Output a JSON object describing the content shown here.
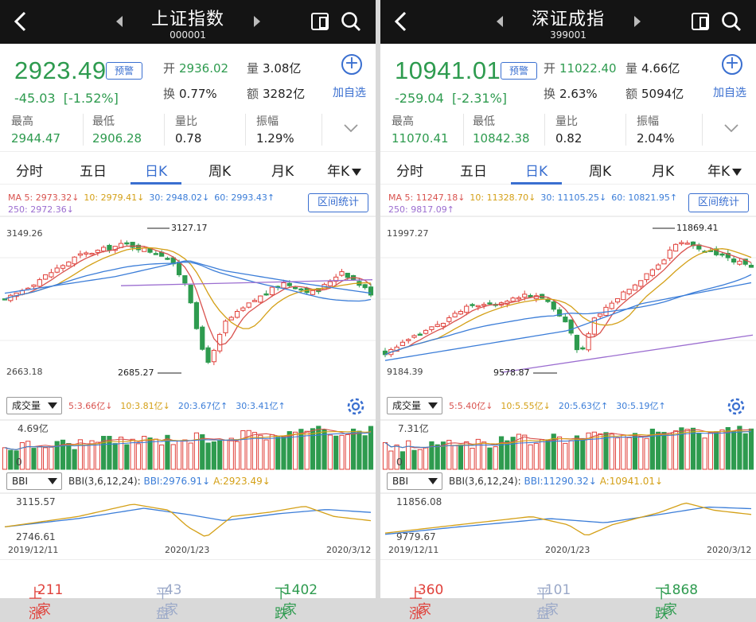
{
  "left": {
    "title": "上证指数",
    "code": "000001",
    "price": "2923.49",
    "alert": "预警",
    "change": "-45.03",
    "change_pct": "[-1.52%]",
    "open_k": "开",
    "open_v": "2936.02",
    "vol_k": "量",
    "vol_v": "3.08亿",
    "turn_k": "换",
    "turn_v": "0.77%",
    "amt_k": "额",
    "amt_v": "3282亿",
    "add_fav": "加自选",
    "stats": [
      {
        "k": "最高",
        "v": "2944.47"
      },
      {
        "k": "最低",
        "v": "2906.28"
      },
      {
        "k": "量比",
        "v": "0.78"
      },
      {
        "k": "振幅",
        "v": "1.29%"
      }
    ],
    "tabs": [
      "分时",
      "五日",
      "日K",
      "周K",
      "月K",
      "年K"
    ],
    "ma_line1": [
      {
        "t": "MA 5: 2973.32↓",
        "c": "#d9534f"
      },
      {
        "t": "10: 2979.41↓",
        "c": "#d4a017"
      },
      {
        "t": "30: 2948.02↓",
        "c": "#3b7dd8"
      },
      {
        "t": "60: 2993.43↑",
        "c": "#3b7dd8"
      }
    ],
    "ma_line2": [
      {
        "t": "250: 2972.36↓",
        "c": "#9b6dd0"
      }
    ],
    "range_btn": "区间统计",
    "y_top": "3149.26",
    "y_bottom": "2663.18",
    "hi_annot": "3127.17",
    "lo_annot": "2685.27",
    "vol_dd": "成交量",
    "vol_ma": [
      {
        "t": "5:3.66亿↓",
        "c": "#d9534f"
      },
      {
        "t": "10:3.81亿↓",
        "c": "#d4a017"
      },
      {
        "t": "20:3.67亿↑",
        "c": "#3b7dd8"
      },
      {
        "t": "30:3.41亿↑",
        "c": "#3b7dd8"
      }
    ],
    "vol_top": "4.69亿",
    "vol_zero": "0",
    "bbi_dd": "BBI",
    "bbi_params": "BBI(3,6,12,24):",
    "bbi_val": "BBI:2976.91↓",
    "bbi_a": "A:2923.49↓",
    "bbi_top": "3115.57",
    "bbi_bottom": "2746.61",
    "dates": [
      "2019/12/11",
      "2020/1/23",
      "2020/3/12"
    ],
    "up_label": "上涨",
    "up_val": "211家",
    "flat_label": "平盘",
    "flat_val": "43家",
    "down_label": "下跌",
    "down_val": "1402家"
  },
  "right": {
    "title": "深证成指",
    "code": "399001",
    "price": "10941.01",
    "alert": "预警",
    "change": "-259.04",
    "change_pct": "[-2.31%]",
    "open_k": "开",
    "open_v": "11022.40",
    "vol_k": "量",
    "vol_v": "4.66亿",
    "turn_k": "换",
    "turn_v": "2.63%",
    "amt_k": "额",
    "amt_v": "5094亿",
    "add_fav": "加自选",
    "stats": [
      {
        "k": "最高",
        "v": "11070.41"
      },
      {
        "k": "最低",
        "v": "10842.38"
      },
      {
        "k": "量比",
        "v": "0.82"
      },
      {
        "k": "振幅",
        "v": "2.04%"
      }
    ],
    "tabs": [
      "分时",
      "五日",
      "日K",
      "周K",
      "月K",
      "年K"
    ],
    "ma_line1": [
      {
        "t": "MA 5: 11247.18↓",
        "c": "#d9534f"
      },
      {
        "t": "10: 11328.70↓",
        "c": "#d4a017"
      },
      {
        "t": "30: 11105.25↓",
        "c": "#3b7dd8"
      },
      {
        "t": "60: 10821.95↑",
        "c": "#3b7dd8"
      }
    ],
    "ma_line2": [
      {
        "t": "250: 9817.09↑",
        "c": "#9b6dd0"
      }
    ],
    "range_btn": "区间统计",
    "y_top": "11997.27",
    "y_bottom": "9184.39",
    "hi_annot": "11869.41",
    "lo_annot": "9578.87",
    "vol_dd": "成交量",
    "vol_ma": [
      {
        "t": "5:5.40亿↓",
        "c": "#d9534f"
      },
      {
        "t": "10:5.55亿↓",
        "c": "#d4a017"
      },
      {
        "t": "20:5.63亿↑",
        "c": "#3b7dd8"
      },
      {
        "t": "30:5.19亿↑",
        "c": "#3b7dd8"
      }
    ],
    "vol_top": "7.31亿",
    "vol_zero": "0",
    "bbi_dd": "BBI",
    "bbi_params": "BBI(3,6,12,24):",
    "bbi_val": "BBI:11290.32↓",
    "bbi_a": "A:10941.01↓",
    "bbi_top": "11856.08",
    "bbi_bottom": "9779.67",
    "dates": [
      "2019/12/11",
      "2020/1/23",
      "2020/3/12"
    ],
    "up_label": "上涨",
    "up_val": "360家",
    "flat_label": "平盘",
    "flat_val": "101家",
    "down_label": "下跌",
    "down_val": "1868家"
  },
  "colors": {
    "up": "#e0403a",
    "down": "#2e9b4f",
    "accent": "#3a6fd0",
    "ma5": "#d9534f",
    "ma10": "#d4a017",
    "ma30": "#3b7dd8",
    "ma250": "#9b6dd0"
  },
  "icons": [
    "back-arrow-icon",
    "prev-arrow-icon",
    "next-arrow-icon",
    "landscape-icon",
    "search-icon",
    "plus-circle-icon",
    "chevron-down-icon",
    "gear-icon",
    "dropdown-triangle-icon"
  ]
}
